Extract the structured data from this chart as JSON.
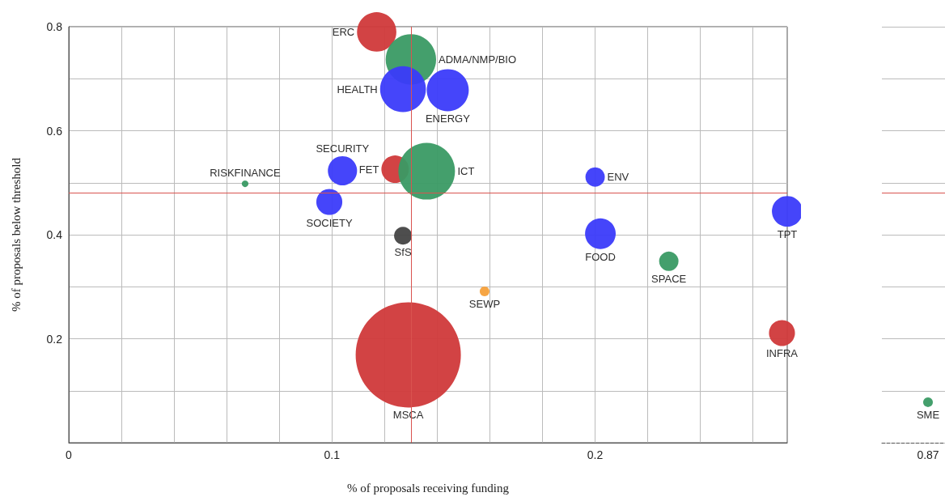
{
  "chart_data": [
    {
      "type": "bubble",
      "xlabel": "% of proposals receiving funding",
      "ylabel": "% of proposals below threshold",
      "xlim": [
        0,
        0.273
      ],
      "ylim": [
        0,
        0.8
      ],
      "xticks": [
        0,
        {
          "value": 0.02,
          "label": null
        },
        {
          "value": 0.04,
          "label": null
        },
        {
          "value": 0.06,
          "label": null
        },
        {
          "value": 0.08,
          "label": null
        },
        0.1,
        {
          "value": 0.12,
          "label": null
        },
        {
          "value": 0.14,
          "label": null
        },
        {
          "value": 0.16,
          "label": null
        },
        {
          "value": 0.18,
          "label": null
        },
        0.2,
        {
          "value": 0.22,
          "label": null
        },
        {
          "value": 0.24,
          "label": null
        },
        {
          "value": 0.26,
          "label": null
        }
      ],
      "yticks": [
        {
          "value": 0.1,
          "label": null
        },
        0.2,
        {
          "value": 0.3,
          "label": null
        },
        0.4,
        {
          "value": 0.5,
          "label": null
        },
        0.6,
        {
          "value": 0.7,
          "label": null
        },
        0.8
      ],
      "grid": true,
      "ref_lines": [
        {
          "axis": "x",
          "value": 0.13,
          "color": "#d9534f"
        },
        {
          "axis": "y",
          "value": 0.483,
          "color": "#d9534f"
        }
      ],
      "series": [
        {
          "name": "ERC",
          "color": "#d0393a",
          "x": [
            0.117
          ],
          "values": [
            0.79
          ],
          "sizes": [
            0.14
          ]
        },
        {
          "name": "ADMA/NMP/BIO",
          "color": "#3a9a64",
          "x": [
            0.13
          ],
          "values": [
            0.737
          ],
          "sizes": [
            0.23
          ]
        },
        {
          "name": "HEALTH",
          "color": "#3b3bfa",
          "x": [
            0.127
          ],
          "values": [
            0.68
          ],
          "sizes": [
            0.19
          ]
        },
        {
          "name": "ENERGY",
          "color": "#3b3bfa",
          "x": [
            0.144
          ],
          "values": [
            0.678
          ],
          "sizes": [
            0.16
          ]
        },
        {
          "name": "SECURITY",
          "color": "#3b3bfa",
          "x": [
            0.104
          ],
          "values": [
            0.523
          ],
          "sizes": [
            0.077
          ]
        },
        {
          "name": "FET",
          "color": "#d0393a",
          "x": [
            0.124
          ],
          "values": [
            0.526
          ],
          "sizes": [
            0.068
          ]
        },
        {
          "name": "ICT",
          "color": "#3a9a64",
          "x": [
            0.136
          ],
          "values": [
            0.522
          ],
          "sizes": [
            0.29
          ]
        },
        {
          "name": "RISKFINANCE",
          "color": "#3a9a64",
          "x": [
            0.067
          ],
          "values": [
            0.498
          ],
          "sizes": [
            0.004
          ]
        },
        {
          "name": "ENV",
          "color": "#3b3bfa",
          "x": [
            0.2
          ],
          "values": [
            0.511
          ],
          "sizes": [
            0.034
          ]
        },
        {
          "name": "SOCIETY",
          "color": "#3b3bfa",
          "x": [
            0.099
          ],
          "values": [
            0.463
          ],
          "sizes": [
            0.061
          ]
        },
        {
          "name": "SfS",
          "color": "#444444",
          "x": [
            0.127
          ],
          "values": [
            0.398
          ],
          "sizes": [
            0.029
          ]
        },
        {
          "name": "FOOD",
          "color": "#3b3bfa",
          "x": [
            0.202
          ],
          "values": [
            0.402
          ],
          "sizes": [
            0.085
          ]
        },
        {
          "name": "TPT",
          "color": "#3b3bfa",
          "x": [
            0.273
          ],
          "values": [
            0.445
          ],
          "sizes": [
            0.085
          ]
        },
        {
          "name": "SPACE",
          "color": "#3a9a64",
          "x": [
            0.228
          ],
          "values": [
            0.349
          ],
          "sizes": [
            0.034
          ]
        },
        {
          "name": "SEWP",
          "color": "#f5a03a",
          "x": [
            0.158
          ],
          "values": [
            0.291
          ],
          "sizes": [
            0.0085
          ]
        },
        {
          "name": "INFRA",
          "color": "#d0393a",
          "x": [
            0.271
          ],
          "values": [
            0.211
          ],
          "sizes": [
            0.061
          ]
        },
        {
          "name": "MSCA",
          "color": "#d0393a",
          "x": [
            0.129
          ],
          "values": [
            0.169
          ],
          "sizes": [
            1
          ]
        }
      ]
    },
    {
      "type": "scatter",
      "categories": [
        "0.87"
      ],
      "ylim": [
        0,
        0.8
      ],
      "yticks": [
        {
          "value": 0.1,
          "label": null
        },
        {
          "value": 0.2,
          "label": null
        },
        {
          "value": 0.3,
          "label": null
        },
        {
          "value": 0.4,
          "label": null
        },
        {
          "value": 0.5,
          "label": null
        },
        {
          "value": 0.6,
          "label": null
        },
        {
          "value": 0.7,
          "label": null
        },
        {
          "value": 0.8,
          "label": null
        }
      ],
      "grid": "y",
      "tick_labels": "x",
      "ref_lines": [
        {
          "axis": "y",
          "value": 0.483,
          "color": "#d9534f"
        }
      ],
      "series": [
        {
          "name": "SME",
          "color": "#3a9a64",
          "values": [
            0.078
          ]
        }
      ]
    }
  ]
}
